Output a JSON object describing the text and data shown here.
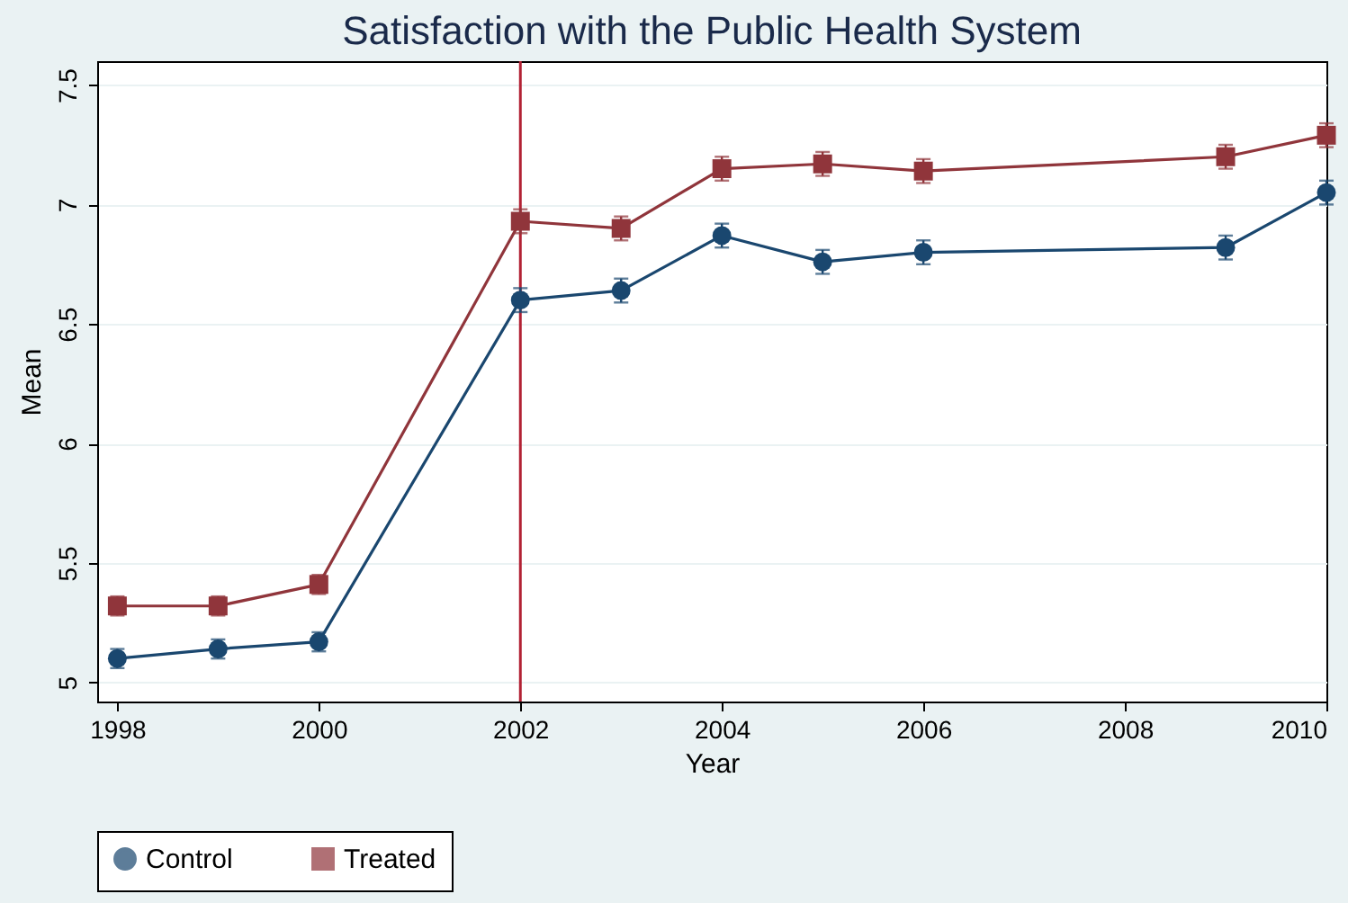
{
  "chart_data": {
    "type": "line",
    "title": "Satisfaction with the Public Health System",
    "xlabel": "Year",
    "ylabel": "Mean",
    "x": [
      1998,
      1999,
      2000,
      2002,
      2003,
      2004,
      2005,
      2006,
      2009,
      2010
    ],
    "series": [
      {
        "name": "Control",
        "color": "#1a476f",
        "marker": "circle",
        "values": [
          5.1,
          5.14,
          5.17,
          6.6,
          6.64,
          6.87,
          6.76,
          6.8,
          6.82,
          7.05
        ],
        "errors": [
          0.04,
          0.04,
          0.04,
          0.05,
          0.05,
          0.05,
          0.05,
          0.05,
          0.05,
          0.05
        ]
      },
      {
        "name": "Treated",
        "color": "#90353b",
        "marker": "square",
        "values": [
          5.32,
          5.32,
          5.41,
          6.93,
          6.9,
          7.15,
          7.17,
          7.14,
          7.2,
          7.29
        ],
        "errors": [
          0.04,
          0.04,
          0.04,
          0.05,
          0.05,
          0.05,
          0.05,
          0.05,
          0.05,
          0.05
        ]
      }
    ],
    "xlim": [
      1997.8,
      2010
    ],
    "xticks": [
      1998,
      2000,
      2002,
      2004,
      2006,
      2008,
      2010
    ],
    "ylim": [
      4.92,
      7.6
    ],
    "yticks": [
      5,
      5.5,
      6,
      6.5,
      7,
      7.5
    ],
    "ref_lines": [
      {
        "axis": "x",
        "value": 2002,
        "color": "#b22234"
      }
    ],
    "grid": "y",
    "legend": "bottom",
    "line_style": "solid"
  }
}
